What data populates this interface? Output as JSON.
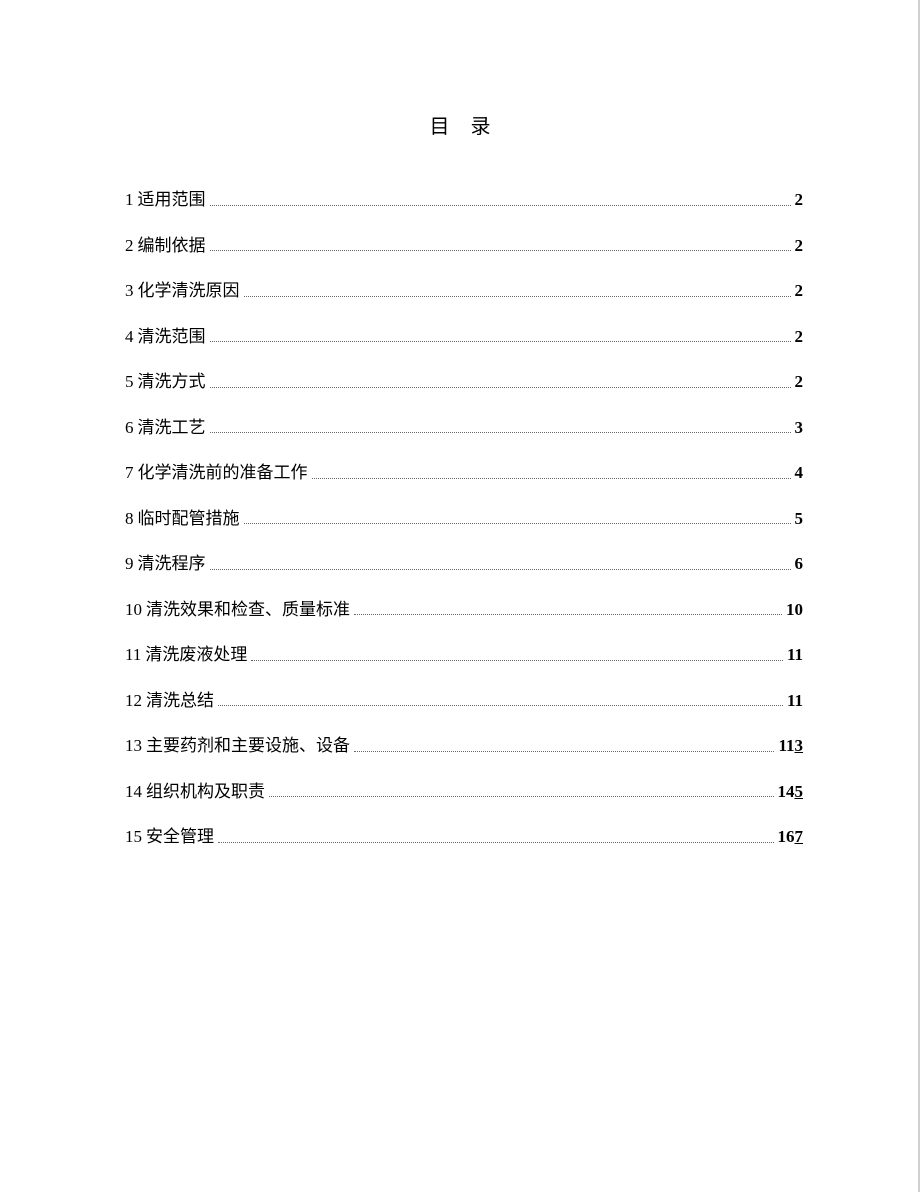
{
  "title": "目 录",
  "entries": [
    {
      "num": "1",
      "title": "适用范围",
      "page": "2",
      "suffix": ""
    },
    {
      "num": "2",
      "title": "编制依据",
      "page": "2",
      "suffix": ""
    },
    {
      "num": "3",
      "title": "化学清洗原因",
      "page": "2",
      "suffix": ""
    },
    {
      "num": "4",
      "title": "清洗范围",
      "page": "2",
      "suffix": ""
    },
    {
      "num": "5",
      "title": "清洗方式",
      "page": "2",
      "suffix": ""
    },
    {
      "num": "6",
      "title": "清洗工艺",
      "page": "3",
      "suffix": ""
    },
    {
      "num": "7",
      "title": "化学清洗前的准备工作",
      "page": "4",
      "suffix": ""
    },
    {
      "num": "8",
      "title": "临时配管措施",
      "page": "5",
      "suffix": ""
    },
    {
      "num": "9",
      "title": "清洗程序",
      "page": "6",
      "suffix": ""
    },
    {
      "num": "10 ",
      "title": "清洗效果和检查、质量标准",
      "page": "10",
      "suffix": ""
    },
    {
      "num": "11",
      "title": "清洗废液处理",
      "page": "11",
      "suffix": ""
    },
    {
      "num": "12 ",
      "title": "清洗总结",
      "page": "11",
      "suffix": ""
    },
    {
      "num": "13 ",
      "title": "主要药剂和主要设施、设备",
      "page": "11",
      "suffix": "3"
    },
    {
      "num": "14 ",
      "title": "组织机构及职责",
      "page": "14",
      "suffix": "5"
    },
    {
      "num": "15 ",
      "title": "安全管理",
      "page": "16",
      "suffix": "7"
    }
  ],
  "colors": {
    "background": "#ffffff",
    "text": "#000000",
    "dots": "#666666",
    "border": "#d0d0d0"
  },
  "typography": {
    "title_fontsize": 20,
    "entry_fontsize": 17,
    "font_family": "SimSun"
  }
}
